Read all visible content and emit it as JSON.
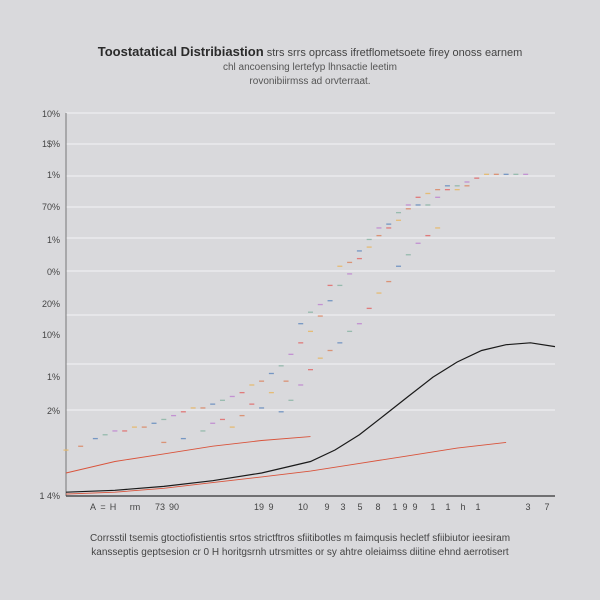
{
  "chart_data": {
    "type": "line",
    "title": "Toostatatical Distribiastion",
    "title_rest": "strs srrs oprcass ifretflometsoete firey onoss earnem",
    "subtitle_lines": [
      "chl ancoensing lertefyp lhnsactie leetim",
      "rovonibiirmss ad orvterraat."
    ],
    "y_tick_labels": [
      "10%",
      "1$%",
      "1%",
      "70%",
      "1%",
      "0%",
      "20%",
      "10%",
      "1%",
      "2%",
      "",
      "1 4%"
    ],
    "x_tick_labels": [
      "A",
      "=",
      "H",
      "rm",
      "73",
      "90",
      "",
      "",
      "",
      "",
      "",
      "",
      "",
      "",
      "",
      "",
      "",
      "",
      "",
      "",
      "",
      "",
      "",
      "19",
      "",
      "",
      "",
      "",
      "",
      "",
      "9",
      "",
      "",
      "",
      "",
      "",
      "",
      "10",
      "",
      "",
      "",
      "",
      "",
      "",
      "",
      "",
      "",
      "",
      "",
      "",
      "",
      "",
      "",
      "9",
      "",
      "",
      "",
      "",
      "",
      "",
      "3",
      "",
      "",
      "",
      "",
      "",
      "5",
      "",
      "",
      "",
      "",
      "",
      "",
      "8",
      "",
      "",
      "1",
      "",
      "9",
      "",
      "",
      "9",
      "",
      "",
      "1",
      "",
      "1",
      "",
      "h",
      "",
      "1",
      "",
      "",
      "",
      "",
      "",
      "",
      "",
      "3",
      "",
      "",
      "7"
    ],
    "x_ticks_visible": [
      "A",
      "=",
      "H",
      "rm",
      "73",
      "90",
      "19",
      "9",
      "10",
      "9",
      "3",
      "5",
      "8",
      "1",
      "9",
      "9",
      "1",
      "1",
      "h",
      "1",
      "3",
      "7"
    ],
    "ylim": [
      0,
      100
    ],
    "xlim": [
      0,
      100
    ],
    "grid": true,
    "series": [
      {
        "kind": "scatter",
        "color_set": [
          "#e6b86a",
          "#d98b6a",
          "#6a8fc0",
          "#8fb7a8",
          "#c08ad0",
          "#e07070"
        ],
        "points": [
          [
            0,
            12
          ],
          [
            3,
            13
          ],
          [
            6,
            15
          ],
          [
            8,
            16
          ],
          [
            10,
            17
          ],
          [
            12,
            17
          ],
          [
            14,
            18
          ],
          [
            16,
            18
          ],
          [
            18,
            19
          ],
          [
            20,
            20
          ],
          [
            22,
            21
          ],
          [
            24,
            22
          ],
          [
            26,
            23
          ],
          [
            28,
            23
          ],
          [
            30,
            24
          ],
          [
            32,
            25
          ],
          [
            34,
            26
          ],
          [
            36,
            27
          ],
          [
            38,
            29
          ],
          [
            40,
            30
          ],
          [
            42,
            32
          ],
          [
            44,
            34
          ],
          [
            46,
            37
          ],
          [
            48,
            40
          ],
          [
            50,
            43
          ],
          [
            52,
            47
          ],
          [
            54,
            51
          ],
          [
            56,
            55
          ],
          [
            58,
            58
          ],
          [
            60,
            62
          ],
          [
            62,
            65
          ],
          [
            64,
            68
          ],
          [
            66,
            71
          ],
          [
            68,
            74
          ],
          [
            70,
            76
          ],
          [
            72,
            78
          ],
          [
            74,
            79
          ],
          [
            76,
            80
          ],
          [
            78,
            81
          ],
          [
            80,
            81
          ],
          [
            82,
            82
          ],
          [
            84,
            83
          ],
          [
            86,
            84
          ],
          [
            88,
            84
          ],
          [
            90,
            84
          ],
          [
            92,
            84
          ],
          [
            94,
            84
          ],
          [
            38,
            24
          ],
          [
            42,
            27
          ],
          [
            45,
            30
          ],
          [
            48,
            45
          ],
          [
            50,
            48
          ],
          [
            52,
            50
          ],
          [
            54,
            55
          ],
          [
            56,
            60
          ],
          [
            58,
            61
          ],
          [
            60,
            64
          ],
          [
            62,
            67
          ],
          [
            64,
            70
          ],
          [
            66,
            70
          ],
          [
            68,
            72
          ],
          [
            70,
            75
          ],
          [
            72,
            76
          ],
          [
            74,
            76
          ],
          [
            76,
            78
          ],
          [
            78,
            80
          ],
          [
            80,
            80
          ],
          [
            82,
            81
          ],
          [
            44,
            22
          ],
          [
            46,
            25
          ],
          [
            48,
            29
          ],
          [
            50,
            33
          ],
          [
            52,
            36
          ],
          [
            54,
            38
          ],
          [
            56,
            40
          ],
          [
            58,
            43
          ],
          [
            60,
            45
          ],
          [
            62,
            49
          ],
          [
            64,
            53
          ],
          [
            66,
            56
          ],
          [
            68,
            60
          ],
          [
            70,
            63
          ],
          [
            72,
            66
          ],
          [
            74,
            68
          ],
          [
            76,
            70
          ],
          [
            20,
            14
          ],
          [
            24,
            15
          ],
          [
            28,
            17
          ],
          [
            30,
            19
          ],
          [
            32,
            20
          ],
          [
            34,
            18
          ],
          [
            36,
            21
          ],
          [
            40,
            23
          ]
        ]
      },
      {
        "kind": "line",
        "color": "#1a1a1a",
        "points": [
          [
            0,
            1
          ],
          [
            10,
            1.5
          ],
          [
            20,
            2.5
          ],
          [
            30,
            4
          ],
          [
            40,
            6
          ],
          [
            50,
            9
          ],
          [
            55,
            12
          ],
          [
            60,
            16
          ],
          [
            65,
            21
          ],
          [
            70,
            26
          ],
          [
            75,
            31
          ],
          [
            80,
            35
          ],
          [
            85,
            38
          ],
          [
            90,
            39.5
          ],
          [
            95,
            40
          ],
          [
            100,
            39
          ]
        ]
      },
      {
        "kind": "line",
        "color": "#d9543c",
        "points": [
          [
            0,
            6
          ],
          [
            10,
            9
          ],
          [
            20,
            11
          ],
          [
            30,
            13
          ],
          [
            40,
            14.5
          ],
          [
            50,
            15.5
          ]
        ]
      },
      {
        "kind": "line",
        "color": "#d9543c",
        "points": [
          [
            0,
            0.5
          ],
          [
            10,
            1
          ],
          [
            20,
            2
          ],
          [
            30,
            3.5
          ],
          [
            40,
            5
          ],
          [
            50,
            6.5
          ],
          [
            60,
            8.5
          ],
          [
            70,
            10.5
          ],
          [
            80,
            12.5
          ],
          [
            90,
            14
          ]
        ]
      }
    ]
  },
  "caption_lines": [
    "Corrsstil tsemis gtoctiofistientis srtos strictftros sfiitibotles m faimqusis hecletf sfiibiutor ieesiram",
    "kansseptis geptsesion cr 0 H horitgsrnh utrsmittes or sy ahtre oleiaimss diitine ehnd aerrotisert"
  ]
}
